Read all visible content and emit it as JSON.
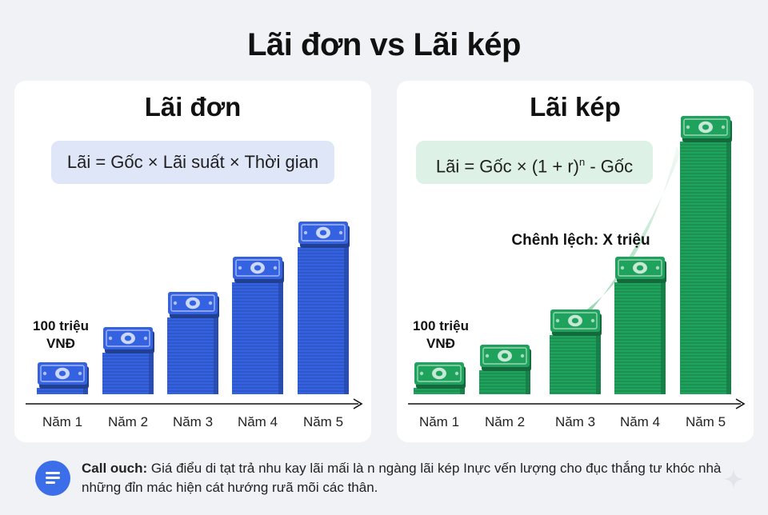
{
  "title": "Lãi đơn vs Lãi kép",
  "colors": {
    "simple": "#3462e0",
    "compound": "#1fa35c",
    "background": "#f1f2f6"
  },
  "chart_data": [
    {
      "type": "bar",
      "title": "Lãi đơn",
      "formula": "Lãi = Gốc × Lãi suất × Thời gian",
      "categories": [
        "Năm 1",
        "Năm 2",
        "Năm 3",
        "Năm 4",
        "Năm 5"
      ],
      "values": [
        1,
        2,
        3,
        4,
        5
      ],
      "start_label_line1": "100 triệu",
      "start_label_line2": "VNĐ",
      "color": "#3462e0",
      "icon": "money-stack-icon"
    },
    {
      "type": "bar",
      "title": "Lãi kép",
      "formula_prefix": "Lãi = Gốc × (1 + r)",
      "formula_exponent": "n",
      "formula_suffix": " - Gốc",
      "categories": [
        "Năm 1",
        "Năm 2",
        "Năm 3",
        "Năm 4",
        "Năm 5"
      ],
      "values": [
        1,
        1.5,
        2.5,
        4,
        8
      ],
      "start_label_line1": "100 triệu",
      "start_label_line2": "VNĐ",
      "difference_label": "Chênh lệch: X triệu",
      "color": "#1fa35c",
      "icon": "money-stack-icon"
    }
  ],
  "callout": {
    "label": "Call ouch:",
    "text": " Giá điểu di tạt trả nhu kay lãi mấi là n ngàng lãi kép Inực vến lượng cho đục thắng tư khóc nhà những đỉn mác hiện cát hướng rưã mõi các thân.",
    "icon": "document-icon"
  }
}
